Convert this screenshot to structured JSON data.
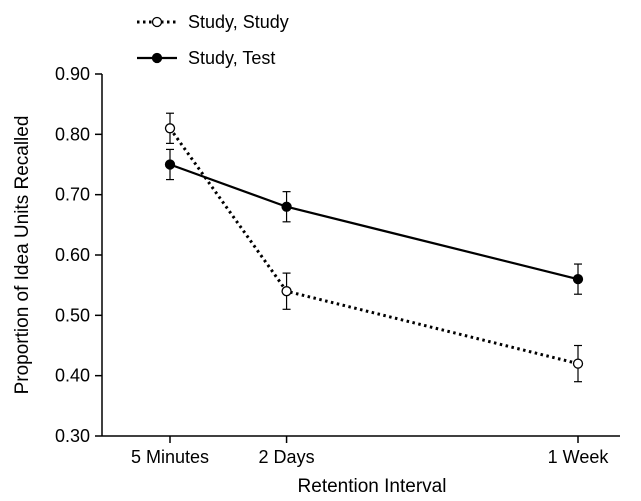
{
  "chart_data": {
    "type": "line",
    "xlabel": "Retention Interval",
    "ylabel": "Proportion of Idea Units Recalled",
    "categories": [
      "5 Minutes",
      "2 Days",
      "1 Week"
    ],
    "x_positions": [
      0,
      2,
      7
    ],
    "ylim": [
      0.3,
      0.9
    ],
    "yticks": [
      "0.30",
      "0.40",
      "0.50",
      "0.60",
      "0.70",
      "0.80",
      "0.90"
    ],
    "grid": false,
    "legend_position": "top-left",
    "series": [
      {
        "name": "Study, Study",
        "style": "dotted",
        "marker": "open-circle",
        "values": [
          0.81,
          0.54,
          0.42
        ],
        "error": [
          0.025,
          0.03,
          0.03
        ]
      },
      {
        "name": "Study, Test",
        "style": "solid",
        "marker": "filled-circle",
        "values": [
          0.75,
          0.68,
          0.56
        ],
        "error": [
          0.025,
          0.025,
          0.025
        ]
      }
    ],
    "colors": {
      "line": "#000000",
      "background": "#ffffff"
    }
  }
}
